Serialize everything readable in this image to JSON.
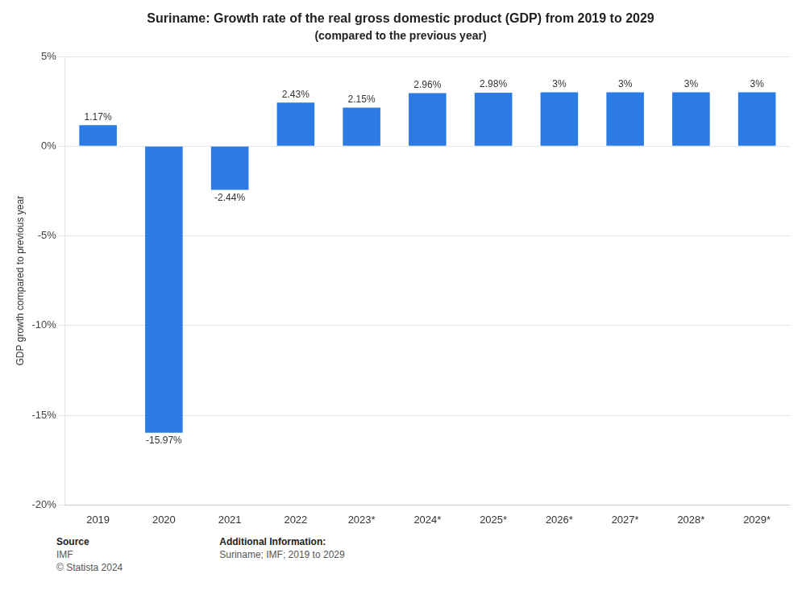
{
  "chart_data": {
    "type": "bar",
    "title": "Suriname: Growth rate of the real gross domestic product (GDP) from 2019 to 2029",
    "subtitle": "(compared to the previous year)",
    "y_label": "GDP growth compared to previous year",
    "categories": [
      "2019",
      "2020",
      "2021",
      "2022",
      "2023*",
      "2024*",
      "2025*",
      "2026*",
      "2027*",
      "2028*",
      "2029*"
    ],
    "values": [
      1.17,
      -15.97,
      -2.44,
      2.43,
      2.15,
      2.96,
      2.98,
      3.0,
      3.0,
      3.0,
      3.0
    ],
    "value_labels": [
      "1.17%",
      "-15.97%",
      "-2.44%",
      "2.43%",
      "2.15%",
      "2.96%",
      "2.98%",
      "3%",
      "3%",
      "3%",
      "3%"
    ],
    "data_labels": true,
    "color": "#2c7be5",
    "ylim": [
      -20,
      5
    ],
    "yticks": [
      {
        "value": -20,
        "label": "-20%"
      },
      {
        "value": -15,
        "label": "-15%"
      },
      {
        "value": -10,
        "label": "-10%"
      },
      {
        "value": -5,
        "label": "-5%"
      },
      {
        "value": 0,
        "label": "0%"
      },
      {
        "value": 5,
        "label": "5%"
      }
    ],
    "grid": true,
    "annotations": [
      [
        "Source",
        "IMF",
        "© Statista 2024"
      ],
      [
        "Additional Information:",
        "Suriname; IMF; 2019 to 2029"
      ]
    ]
  }
}
